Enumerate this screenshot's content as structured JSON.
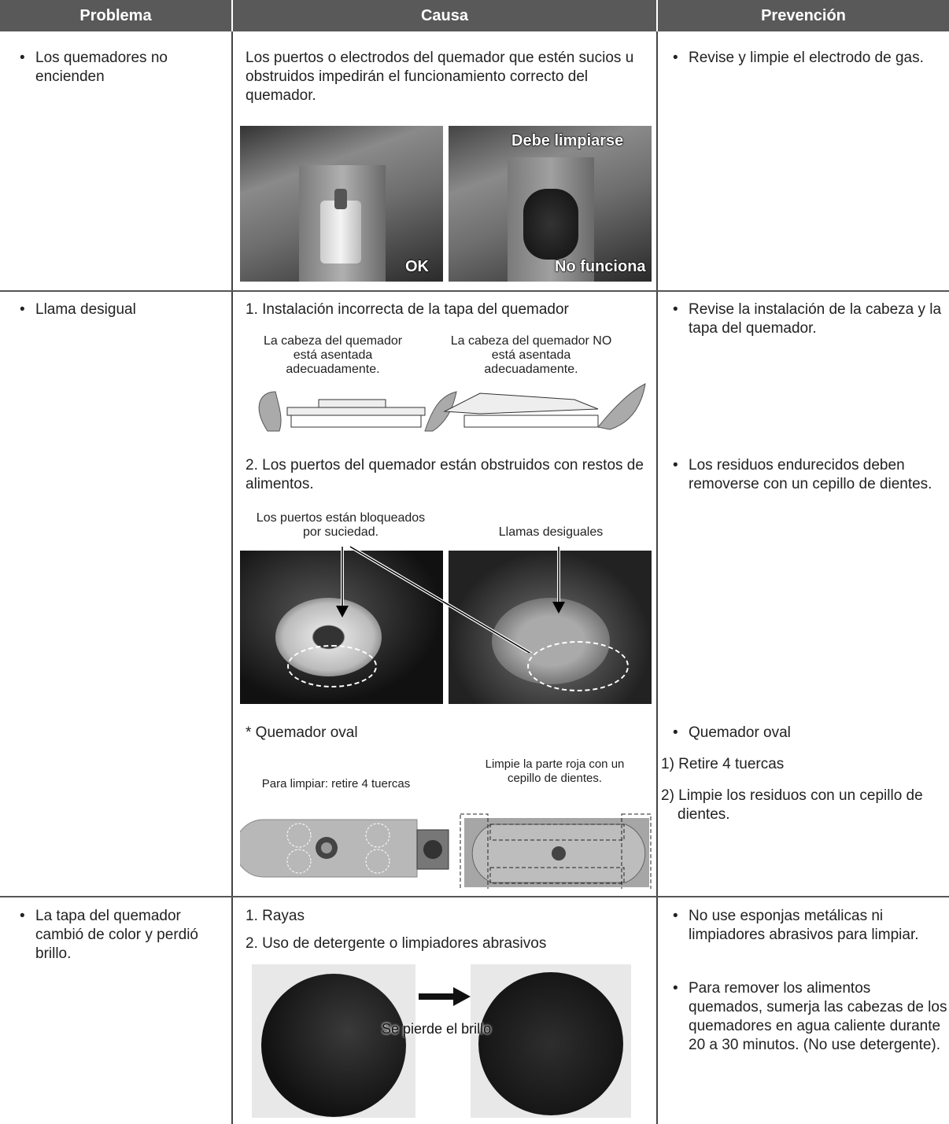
{
  "header": {
    "columns": [
      "Problema",
      "Causa",
      "Prevención"
    ]
  },
  "rows": [
    {
      "problem": "Los quemadores no encienden",
      "cause": "Los puertos o electrodos del quemador que estén sucios u obstruidos impedirán el funcionamiento correcto del quemador.",
      "image_labels": [
        "OK",
        "Debe limpiarse",
        "No funciona"
      ],
      "prevention": [
        "Revise y limpie el electrodo de gas."
      ]
    },
    {
      "problem": "Llama desigual",
      "causes": [
        {
          "text": "1. Instalación incorrecta de la tapa del quemador",
          "captions": [
            "La cabeza del quemador está asentada adecuadamente.",
            "La cabeza del quemador NO está asentada adecuadamente."
          ]
        },
        {
          "text": "2. Los puertos del quemador están obstruidos con restos de alimentos.",
          "captions": [
            "Los puertos están bloqueados por suciedad.",
            "Llamas desiguales"
          ]
        },
        {
          "text": "* Quemador oval",
          "captions": [
            "Para limpiar: retire 4 tuercas",
            "Limpie la parte roja con un cepillo de dientes."
          ]
        }
      ],
      "prevention": [
        "Revise la instalación de la cabeza y la tapa del quemador.",
        "Los residuos endurecidos deben removerse con un cepillo de dientes.",
        "Quemador oval"
      ],
      "steps": [
        "1) Retire 4 tuercas",
        "2) Limpie los residuos con un cepillo de dientes."
      ]
    },
    {
      "problem": "La tapa del quemador cambió de color y perdió brillo.",
      "causes": [
        "1. Rayas",
        "2. Uso de detergente o limpiadores abrasivos"
      ],
      "image_label": "Se pierde el brillo",
      "prevention": [
        "No use esponjas metálicas ni limpiadores abrasivos para limpiar.",
        "Para remover los alimentos quemados, sumerja las cabezas de los quemadores en agua caliente durante 20 a 30 minutos. (No use detergente)."
      ]
    }
  ]
}
